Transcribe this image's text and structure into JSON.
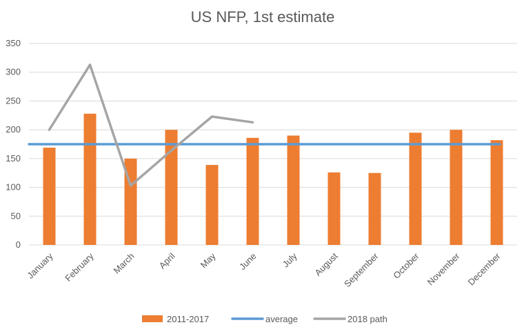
{
  "chart_data": {
    "type": "bar",
    "title": "US NFP, 1st estimate",
    "xlabel": "",
    "ylabel": "",
    "ylim": [
      0,
      350
    ],
    "yticks": [
      0,
      50,
      100,
      150,
      200,
      250,
      300,
      350
    ],
    "grid": true,
    "legend_position": "bottom",
    "categories": [
      "January",
      "February",
      "March",
      "April",
      "May",
      "June",
      "July",
      "August",
      "September",
      "October",
      "November",
      "December"
    ],
    "series": [
      {
        "name": "2011-2017",
        "type": "bar",
        "color": "#ed7d31",
        "values": [
          169,
          228,
          150,
          200,
          139,
          186,
          190,
          126,
          125,
          195,
          200,
          182
        ]
      },
      {
        "name": "average",
        "type": "line",
        "color": "#5b9bd5",
        "values": [
          175,
          175,
          175,
          175,
          175,
          175,
          175,
          175,
          175,
          175,
          175,
          175
        ]
      },
      {
        "name": "2018 path",
        "type": "line",
        "color": "#a5a5a5",
        "values": [
          200,
          313,
          103,
          164,
          223,
          213,
          null,
          null,
          null,
          null,
          null,
          null
        ]
      }
    ]
  }
}
